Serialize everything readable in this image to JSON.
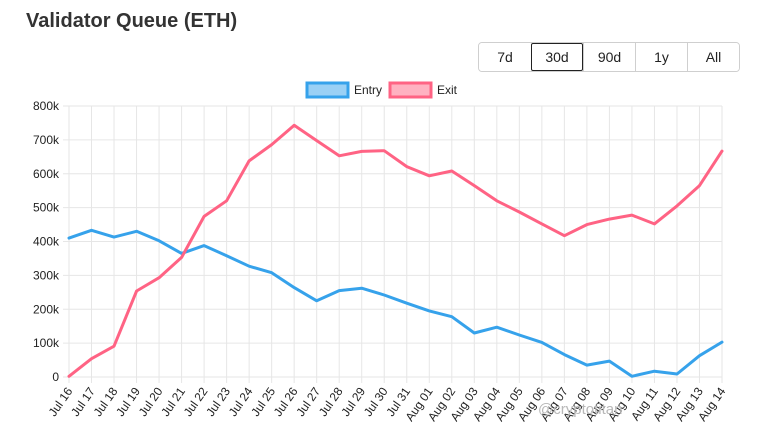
{
  "title": "Validator Queue (ETH)",
  "range_buttons": [
    {
      "label": "7d",
      "active": false
    },
    {
      "label": "30d",
      "active": true
    },
    {
      "label": "90d",
      "active": false
    },
    {
      "label": "1y",
      "active": false
    },
    {
      "label": "All",
      "active": false
    }
  ],
  "watermark": "@cryptotitan",
  "chart_data": {
    "type": "line",
    "categories": [
      "Jul 16",
      "Jul 17",
      "Jul 18",
      "Jul 19",
      "Jul 20",
      "Jul 21",
      "Jul 22",
      "Jul 23",
      "Jul 24",
      "Jul 25",
      "Jul 26",
      "Jul 27",
      "Jul 28",
      "Jul 29",
      "Jul 30",
      "Jul 31",
      "Aug 01",
      "Aug 02",
      "Aug 03",
      "Aug 04",
      "Aug 05",
      "Aug 06",
      "Aug 07",
      "Aug 08",
      "Aug 09",
      "Aug 10",
      "Aug 11",
      "Aug 12",
      "Aug 13",
      "Aug 14"
    ],
    "series": [
      {
        "name": "Entry",
        "color": "#36a2eb",
        "fill": "#9ad0f5",
        "values": [
          410000,
          433000,
          413000,
          430000,
          402000,
          365000,
          388000,
          358000,
          327000,
          308000,
          264000,
          225000,
          255000,
          262000,
          242000,
          218000,
          195000,
          178000,
          130000,
          147000,
          124000,
          102000,
          66000,
          35000,
          47000,
          2000,
          17000,
          9000,
          63000,
          103000
        ]
      },
      {
        "name": "Exit",
        "color": "#ff6384",
        "fill": "#ffb1c1",
        "values": [
          2000,
          54000,
          91000,
          254000,
          293000,
          353000,
          474000,
          520000,
          638000,
          686000,
          743000,
          698000,
          653000,
          666000,
          668000,
          621000,
          594000,
          608000,
          565000,
          520000,
          487000,
          452000,
          417000,
          450000,
          466000,
          478000,
          452000,
          505000,
          565000,
          667000
        ]
      }
    ],
    "y_ticks": [
      "0",
      "100k",
      "200k",
      "300k",
      "400k",
      "500k",
      "600k",
      "700k",
      "800k"
    ],
    "ylim": [
      0,
      800000
    ],
    "grid": true,
    "legend": "top-center"
  }
}
